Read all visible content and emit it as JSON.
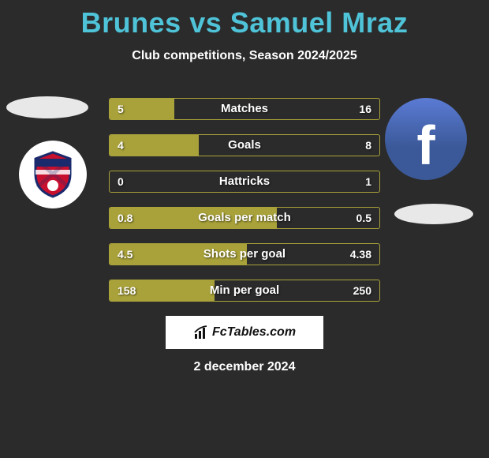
{
  "title": "Brunes vs Samuel Mraz",
  "subtitle": "Club competitions, Season 2024/2025",
  "title_color": "#4fc3d8",
  "background_color": "#2b2b2b",
  "bar_fill_color": "#a9a23a",
  "bar_border_color": "#a9a23a",
  "bars": [
    {
      "label": "Matches",
      "left": "5",
      "right": "16",
      "fill_pct": 24
    },
    {
      "label": "Goals",
      "left": "4",
      "right": "8",
      "fill_pct": 33
    },
    {
      "label": "Hattricks",
      "left": "0",
      "right": "1",
      "fill_pct": 0
    },
    {
      "label": "Goals per match",
      "left": "0.8",
      "right": "0.5",
      "fill_pct": 62
    },
    {
      "label": "Shots per goal",
      "left": "4.5",
      "right": "4.38",
      "fill_pct": 51
    },
    {
      "label": "Min per goal",
      "left": "158",
      "right": "250",
      "fill_pct": 39
    }
  ],
  "brand": "FcTables.com",
  "date": "2 december 2024",
  "social_icon": "facebook"
}
